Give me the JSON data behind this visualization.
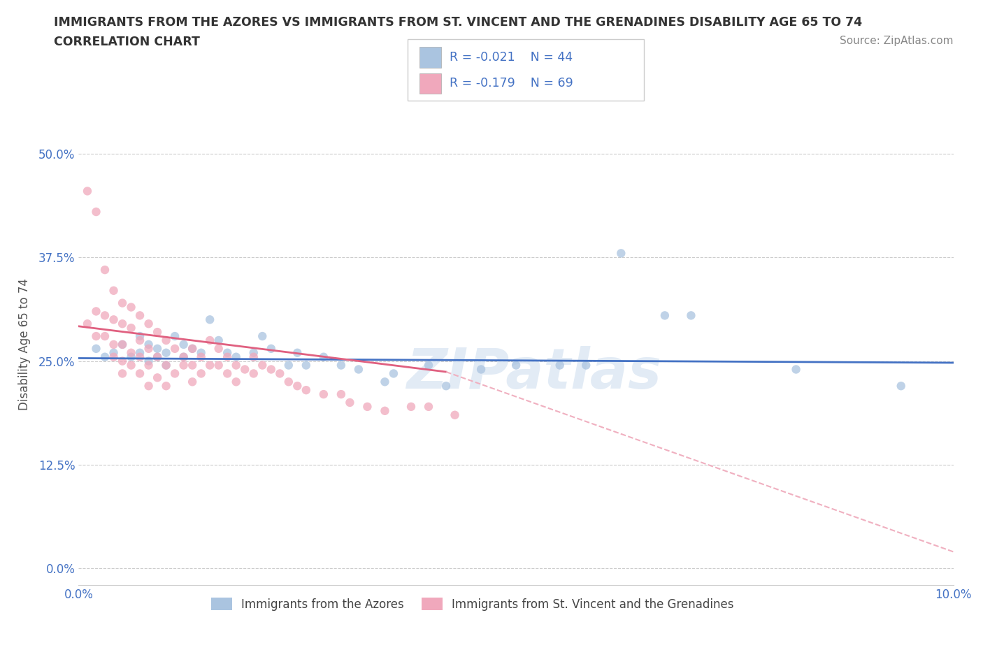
{
  "title_line1": "IMMIGRANTS FROM THE AZORES VS IMMIGRANTS FROM ST. VINCENT AND THE GRENADINES DISABILITY AGE 65 TO 74",
  "title_line2": "CORRELATION CHART",
  "source_text": "Source: ZipAtlas.com",
  "ylabel": "Disability Age 65 to 74",
  "xlim": [
    0.0,
    0.1
  ],
  "ylim": [
    -0.02,
    0.56
  ],
  "ytick_vals": [
    0.0,
    0.125,
    0.25,
    0.375,
    0.5
  ],
  "ytick_labels": [
    "0.0%",
    "12.5%",
    "25.0%",
    "37.5%",
    "50.0%"
  ],
  "xtick_vals": [
    0.0,
    0.1
  ],
  "xtick_labels": [
    "0.0%",
    "10.0%"
  ],
  "watermark": "ZIPatlas",
  "color_azores_fill": "#aac4e0",
  "color_svg_fill": "#f0a8bc",
  "color_blue": "#4472c4",
  "color_pink_line": "#e06080",
  "color_pink_dash": "#f0b0c0",
  "azores_points": [
    [
      0.002,
      0.265
    ],
    [
      0.003,
      0.255
    ],
    [
      0.004,
      0.26
    ],
    [
      0.005,
      0.27
    ],
    [
      0.006,
      0.255
    ],
    [
      0.007,
      0.26
    ],
    [
      0.007,
      0.28
    ],
    [
      0.008,
      0.27
    ],
    [
      0.008,
      0.25
    ],
    [
      0.009,
      0.265
    ],
    [
      0.009,
      0.255
    ],
    [
      0.01,
      0.26
    ],
    [
      0.01,
      0.245
    ],
    [
      0.011,
      0.28
    ],
    [
      0.012,
      0.27
    ],
    [
      0.012,
      0.255
    ],
    [
      0.013,
      0.265
    ],
    [
      0.014,
      0.26
    ],
    [
      0.015,
      0.3
    ],
    [
      0.016,
      0.275
    ],
    [
      0.017,
      0.26
    ],
    [
      0.018,
      0.255
    ],
    [
      0.02,
      0.26
    ],
    [
      0.021,
      0.28
    ],
    [
      0.022,
      0.265
    ],
    [
      0.024,
      0.245
    ],
    [
      0.025,
      0.26
    ],
    [
      0.026,
      0.245
    ],
    [
      0.028,
      0.255
    ],
    [
      0.03,
      0.245
    ],
    [
      0.032,
      0.24
    ],
    [
      0.035,
      0.225
    ],
    [
      0.036,
      0.235
    ],
    [
      0.04,
      0.245
    ],
    [
      0.042,
      0.22
    ],
    [
      0.046,
      0.24
    ],
    [
      0.05,
      0.245
    ],
    [
      0.055,
      0.245
    ],
    [
      0.058,
      0.245
    ],
    [
      0.062,
      0.38
    ],
    [
      0.067,
      0.305
    ],
    [
      0.07,
      0.305
    ],
    [
      0.082,
      0.24
    ],
    [
      0.094,
      0.22
    ]
  ],
  "svg_points": [
    [
      0.001,
      0.455
    ],
    [
      0.002,
      0.43
    ],
    [
      0.001,
      0.295
    ],
    [
      0.002,
      0.31
    ],
    [
      0.002,
      0.28
    ],
    [
      0.003,
      0.36
    ],
    [
      0.003,
      0.305
    ],
    [
      0.003,
      0.28
    ],
    [
      0.004,
      0.335
    ],
    [
      0.004,
      0.3
    ],
    [
      0.004,
      0.27
    ],
    [
      0.004,
      0.255
    ],
    [
      0.005,
      0.32
    ],
    [
      0.005,
      0.295
    ],
    [
      0.005,
      0.27
    ],
    [
      0.005,
      0.25
    ],
    [
      0.005,
      0.235
    ],
    [
      0.006,
      0.315
    ],
    [
      0.006,
      0.29
    ],
    [
      0.006,
      0.26
    ],
    [
      0.006,
      0.245
    ],
    [
      0.007,
      0.305
    ],
    [
      0.007,
      0.275
    ],
    [
      0.007,
      0.255
    ],
    [
      0.007,
      0.235
    ],
    [
      0.008,
      0.295
    ],
    [
      0.008,
      0.265
    ],
    [
      0.008,
      0.245
    ],
    [
      0.008,
      0.22
    ],
    [
      0.009,
      0.285
    ],
    [
      0.009,
      0.255
    ],
    [
      0.009,
      0.23
    ],
    [
      0.01,
      0.275
    ],
    [
      0.01,
      0.245
    ],
    [
      0.01,
      0.22
    ],
    [
      0.011,
      0.265
    ],
    [
      0.011,
      0.235
    ],
    [
      0.012,
      0.255
    ],
    [
      0.012,
      0.245
    ],
    [
      0.013,
      0.265
    ],
    [
      0.013,
      0.245
    ],
    [
      0.013,
      0.225
    ],
    [
      0.014,
      0.255
    ],
    [
      0.014,
      0.235
    ],
    [
      0.015,
      0.275
    ],
    [
      0.015,
      0.245
    ],
    [
      0.016,
      0.265
    ],
    [
      0.016,
      0.245
    ],
    [
      0.017,
      0.255
    ],
    [
      0.017,
      0.235
    ],
    [
      0.018,
      0.245
    ],
    [
      0.018,
      0.225
    ],
    [
      0.019,
      0.24
    ],
    [
      0.02,
      0.255
    ],
    [
      0.02,
      0.235
    ],
    [
      0.021,
      0.245
    ],
    [
      0.022,
      0.24
    ],
    [
      0.023,
      0.235
    ],
    [
      0.024,
      0.225
    ],
    [
      0.025,
      0.22
    ],
    [
      0.026,
      0.215
    ],
    [
      0.028,
      0.21
    ],
    [
      0.03,
      0.21
    ],
    [
      0.031,
      0.2
    ],
    [
      0.033,
      0.195
    ],
    [
      0.035,
      0.19
    ],
    [
      0.038,
      0.195
    ],
    [
      0.04,
      0.195
    ],
    [
      0.043,
      0.185
    ]
  ],
  "azores_line": {
    "x0": 0.0,
    "y0": 0.2535,
    "x1": 0.1,
    "y1": 0.248
  },
  "svg_line_solid": {
    "x0": 0.0,
    "y0": 0.292,
    "x1": 0.042,
    "y1": 0.237
  },
  "svg_line_dash": {
    "x0": 0.042,
    "y0": 0.237,
    "x1": 0.1,
    "y1": 0.02
  }
}
